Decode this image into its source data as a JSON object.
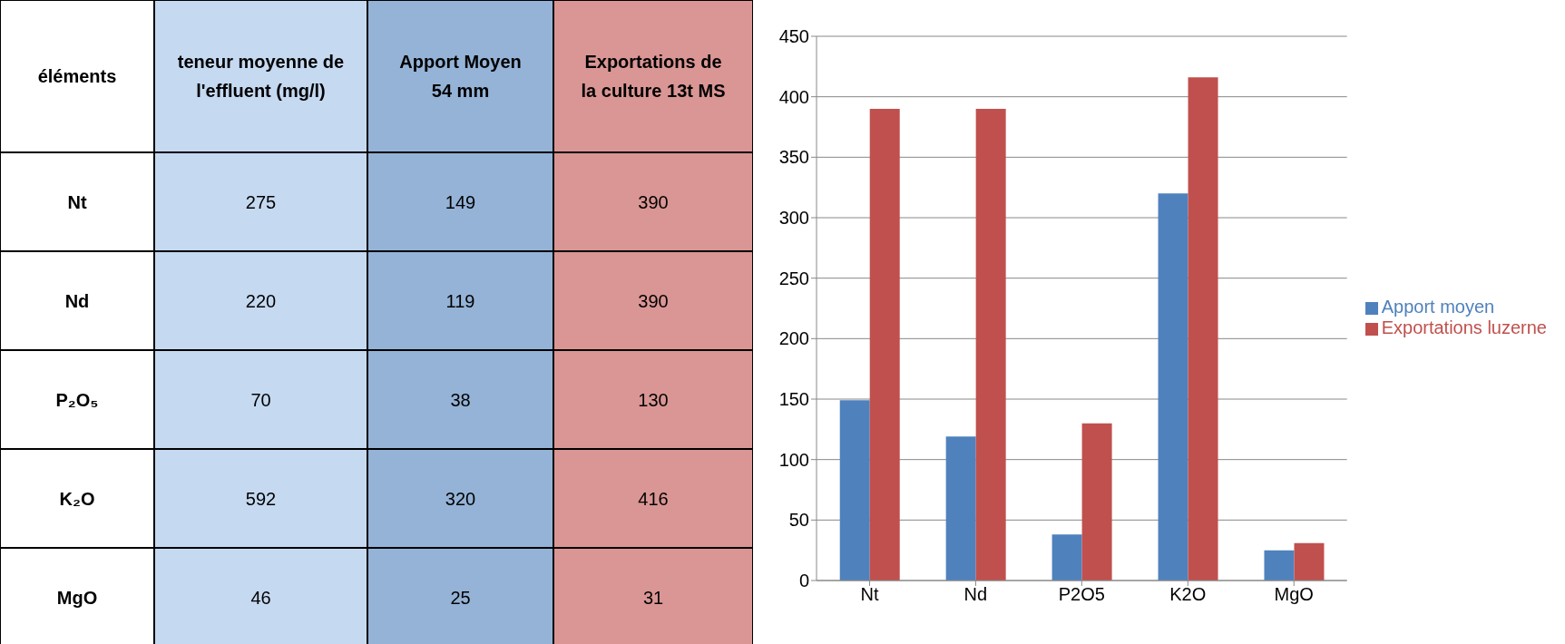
{
  "chart_data": [
    {
      "type": "other",
      "xlabel": "éléments",
      "categories": [
        "Nt",
        "Nd",
        "P₂O₅",
        "K₂O",
        "MgO"
      ],
      "data_labels": true,
      "series": [
        {
          "name": "teneur moyenne de l'effluent (mg/l)",
          "color": "#c5d9f1",
          "values": [
            275,
            220,
            70,
            592,
            46
          ]
        },
        {
          "name": "Apport Moyen 54 mm",
          "color": "#95b3d7",
          "values": [
            149,
            119,
            38,
            320,
            25
          ]
        },
        {
          "name": "Exportations de la culture 13t MS",
          "color": "#da9694",
          "values": [
            390,
            390,
            130,
            416,
            31
          ]
        }
      ]
    },
    {
      "type": "bar",
      "categories": [
        "Nt",
        "Nd",
        "P2O5",
        "K2O",
        "MgO"
      ],
      "ylim": [
        0,
        450
      ],
      "yticks": [
        0,
        50,
        100,
        150,
        200,
        250,
        300,
        350,
        400,
        450
      ],
      "grid": "y",
      "legend": "right",
      "series": [
        {
          "name": "Apport moyen",
          "color": "#4f81bd",
          "values": [
            149,
            119,
            38,
            320,
            25
          ]
        },
        {
          "name": "Exportations luzerne",
          "color": "#c0504d",
          "values": [
            390,
            390,
            130,
            416,
            31
          ]
        }
      ]
    }
  ]
}
